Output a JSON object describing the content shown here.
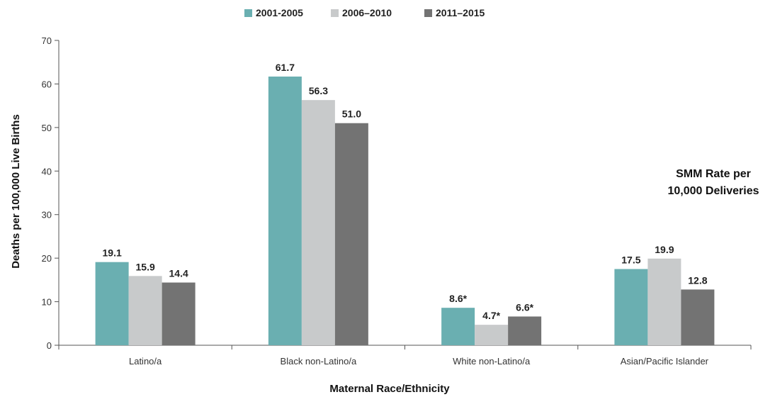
{
  "chart_data": {
    "type": "bar",
    "categories": [
      "Latino/a",
      "Black non-Latino/a",
      "White non-Latino/a",
      "Asian/Pacific Islander"
    ],
    "series": [
      {
        "name": "2001-2005",
        "values": [
          19.1,
          61.7,
          8.6,
          17.5
        ],
        "labels": [
          "19.1",
          "61.7",
          "8.6*",
          "17.5"
        ],
        "color": "#6aafb1"
      },
      {
        "name": "2006–2010",
        "values": [
          15.9,
          56.3,
          4.7,
          19.9
        ],
        "labels": [
          "15.9",
          "56.3",
          "4.7*",
          "19.9"
        ],
        "color": "#c8cacb"
      },
      {
        "name": "2011–2015",
        "values": [
          14.4,
          51.0,
          6.6,
          12.8
        ],
        "labels": [
          "14.4",
          "51.0",
          "6.6*",
          "12.8"
        ],
        "color": "#737373"
      }
    ],
    "ylim": [
      0,
      70
    ],
    "yticks": [
      0,
      10,
      20,
      30,
      40,
      50,
      60,
      70
    ],
    "xlabel": "Maternal Race/Ethnicity",
    "ylabel": "Deaths per 100,000 Live Births",
    "legend_position": "top-center",
    "annotation": [
      "SMM Rate per",
      "10,000 Deliveries"
    ],
    "grid": false
  }
}
